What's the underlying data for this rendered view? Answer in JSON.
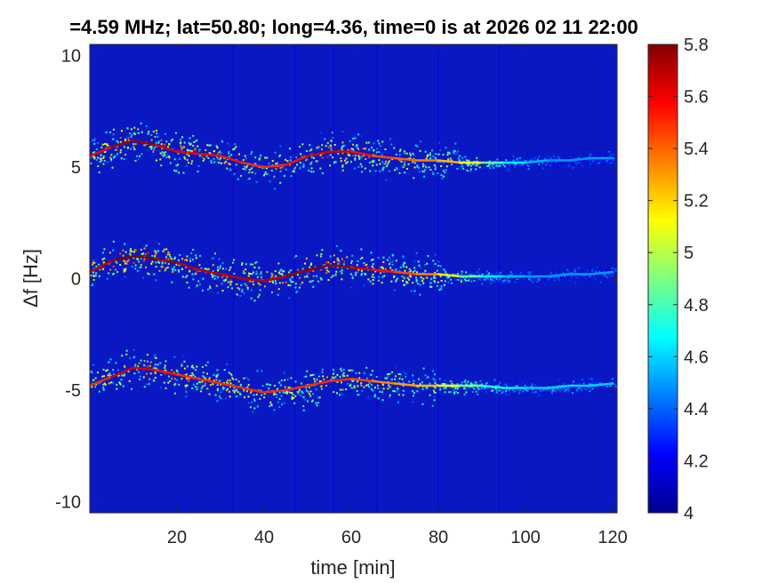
{
  "chart_data": {
    "type": "heatmap",
    "title": "=4.59 MHz;  lat=50.80; long=4.36, time=0 is at 2026 02 11 22:00",
    "xlabel": "time [min]",
    "ylabel": "Δf [Hz]",
    "xlim": [
      0,
      121
    ],
    "ylim": [
      -10.5,
      10.5
    ],
    "x_ticks": [
      20,
      40,
      60,
      80,
      100,
      120
    ],
    "x_tick_labels": [
      "20",
      "40",
      "60",
      "80",
      "100",
      "120"
    ],
    "y_ticks": [
      10,
      5,
      0,
      -5,
      -10
    ],
    "y_tick_labels": [
      "10",
      "5",
      "0",
      "-5",
      "-10"
    ],
    "background_level": 4.0,
    "colorbar": {
      "colormap": "jet",
      "clim": [
        4,
        5.8
      ],
      "ticks": [
        4,
        4.2,
        4.4,
        4.6,
        4.8,
        5,
        5.2,
        5.4,
        5.6,
        5.8
      ],
      "tick_labels": [
        "4",
        "4.2",
        "4.4",
        "4.6",
        "4.8",
        "5",
        "5.2",
        "5.4",
        "5.6",
        "5.8"
      ]
    },
    "series": [
      {
        "time_min": [
          0,
          5,
          10,
          15,
          20,
          25,
          30,
          35,
          40,
          45,
          50,
          55,
          60,
          65,
          70,
          75,
          80,
          85,
          90,
          95,
          100,
          105,
          110,
          115,
          120
        ],
        "delta_f_hz": [
          5.5,
          5.9,
          6.2,
          6.0,
          5.7,
          5.6,
          5.5,
          5.2,
          5.0,
          5.1,
          5.5,
          5.7,
          5.7,
          5.5,
          5.4,
          5.3,
          5.3,
          5.2,
          5.2,
          5.2,
          5.2,
          5.3,
          5.3,
          5.4,
          5.4
        ],
        "peak_level": [
          5.5,
          5.7,
          5.8,
          5.7,
          5.6,
          5.6,
          5.6,
          5.5,
          5.5,
          5.5,
          5.6,
          5.7,
          5.6,
          5.5,
          5.4,
          5.4,
          5.3,
          5.2,
          5.0,
          4.7,
          4.6,
          4.5,
          4.5,
          4.5,
          4.5
        ]
      },
      {
        "time_min": [
          0,
          5,
          10,
          15,
          20,
          25,
          30,
          35,
          40,
          45,
          50,
          55,
          60,
          65,
          70,
          75,
          80,
          85,
          90,
          95,
          100,
          105,
          110,
          115,
          120
        ],
        "delta_f_hz": [
          0.3,
          0.8,
          1.0,
          0.9,
          0.7,
          0.4,
          0.2,
          0.0,
          -0.1,
          0.1,
          0.4,
          0.6,
          0.5,
          0.4,
          0.3,
          0.2,
          0.2,
          0.1,
          0.1,
          0.1,
          0.1,
          0.1,
          0.2,
          0.2,
          0.3
        ],
        "peak_level": [
          5.6,
          5.8,
          5.8,
          5.8,
          5.7,
          5.7,
          5.7,
          5.7,
          5.7,
          5.7,
          5.8,
          5.8,
          5.7,
          5.6,
          5.5,
          5.4,
          5.3,
          5.0,
          4.7,
          4.6,
          4.5,
          4.5,
          4.5,
          4.5,
          4.5
        ]
      },
      {
        "time_min": [
          0,
          5,
          10,
          15,
          20,
          25,
          30,
          35,
          40,
          45,
          50,
          55,
          60,
          65,
          70,
          75,
          80,
          85,
          90,
          95,
          100,
          105,
          110,
          115,
          120
        ],
        "delta_f_hz": [
          -4.8,
          -4.4,
          -4.0,
          -4.1,
          -4.3,
          -4.5,
          -4.7,
          -4.9,
          -5.1,
          -5.0,
          -4.8,
          -4.6,
          -4.5,
          -4.6,
          -4.7,
          -4.8,
          -4.8,
          -4.8,
          -4.8,
          -4.9,
          -4.9,
          -4.9,
          -4.8,
          -4.8,
          -4.7
        ],
        "peak_level": [
          5.4,
          5.6,
          5.7,
          5.6,
          5.5,
          5.5,
          5.5,
          5.5,
          5.5,
          5.5,
          5.5,
          5.5,
          5.5,
          5.4,
          5.3,
          5.3,
          5.2,
          5.0,
          4.8,
          4.7,
          4.6,
          4.6,
          4.6,
          4.6,
          4.6
        ]
      }
    ],
    "vertical_streaks_time_min": [
      33,
      47,
      56,
      66,
      80,
      94
    ]
  }
}
